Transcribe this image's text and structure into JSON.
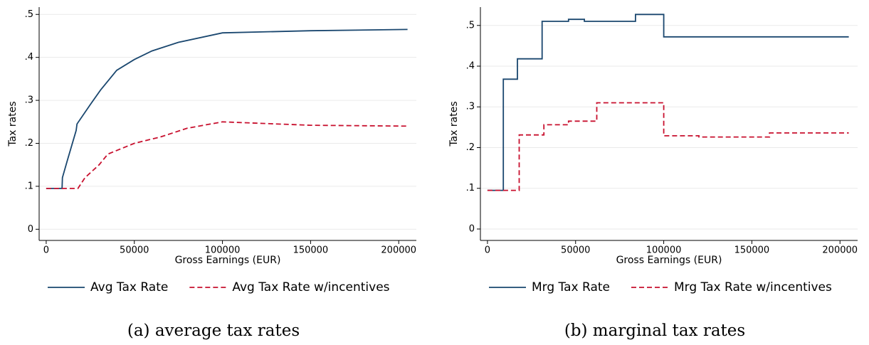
{
  "chart_data": [
    {
      "type": "line",
      "caption": "(a) average tax rates",
      "ylabel": "Tax rates",
      "xlabel": "Gross Earnings (EUR)",
      "xlim": [
        -4000,
        210000
      ],
      "xticks": [
        0,
        50000,
        100000,
        150000,
        200000
      ],
      "ylim": [
        -0.026,
        0.517
      ],
      "yticks": [
        0,
        {
          "value": 0.1,
          "label": ".1"
        },
        {
          "value": 0.2,
          "label": ".2"
        },
        {
          "value": 0.3,
          "label": ".3"
        },
        {
          "value": 0.4,
          "label": ".4"
        },
        {
          "value": 0.5,
          "label": ".5"
        }
      ],
      "grid": true,
      "series": [
        {
          "name": "Avg Tax Rate",
          "color": "#1a476f",
          "style": "solid",
          "x": [
            0,
            9000,
            9200,
            12000,
            17000,
            17500,
            25000,
            31000,
            40000,
            50000,
            60000,
            75000,
            100000,
            150000,
            205000
          ],
          "values": [
            0.095,
            0.095,
            0.12,
            0.16,
            0.23,
            0.245,
            0.29,
            0.325,
            0.37,
            0.395,
            0.415,
            0.435,
            0.457,
            0.462,
            0.465
          ]
        },
        {
          "name": "Avg Tax Rate w/incentives",
          "color": "#c8102e",
          "style": "dashed",
          "x": [
            0,
            18000,
            22000,
            30000,
            35000,
            50000,
            65000,
            80000,
            100000,
            150000,
            205000
          ],
          "values": [
            0.095,
            0.095,
            0.12,
            0.15,
            0.175,
            0.2,
            0.215,
            0.235,
            0.25,
            0.242,
            0.24
          ]
        }
      ]
    },
    {
      "type": "line",
      "caption": "(b) marginal tax rates",
      "ylabel": "Tax rates",
      "xlabel": "Gross Earnings (EUR)",
      "xlim": [
        -4000,
        210000
      ],
      "xticks": [
        0,
        50000,
        100000,
        150000,
        200000
      ],
      "ylim": [
        -0.028,
        0.545
      ],
      "yticks": [
        0,
        {
          "value": 0.1,
          "label": ".1"
        },
        {
          "value": 0.2,
          "label": ".2"
        },
        {
          "value": 0.3,
          "label": ".3"
        },
        {
          "value": 0.4,
          "label": ".4"
        },
        {
          "value": 0.5,
          "label": ".5"
        }
      ],
      "grid": true,
      "series": [
        {
          "name": "Mrg Tax Rate",
          "color": "#1a476f",
          "style": "solid",
          "x": [
            0,
            9000,
            9000,
            17000,
            17000,
            31000,
            31000,
            46000,
            46000,
            55000,
            55000,
            84000,
            84000,
            100000,
            100000,
            205000
          ],
          "values": [
            0.095,
            0.095,
            0.368,
            0.368,
            0.418,
            0.418,
            0.51,
            0.51,
            0.515,
            0.515,
            0.51,
            0.51,
            0.527,
            0.527,
            0.472,
            0.472
          ]
        },
        {
          "name": "Mrg Tax Rate w/incentives",
          "color": "#c8102e",
          "style": "dashed",
          "x": [
            0,
            18000,
            18000,
            32000,
            32000,
            46000,
            46000,
            62000,
            62000,
            100000,
            100000,
            120000,
            120000,
            160000,
            160000,
            205000
          ],
          "values": [
            0.095,
            0.095,
            0.231,
            0.231,
            0.256,
            0.256,
            0.265,
            0.265,
            0.31,
            0.31,
            0.229,
            0.229,
            0.226,
            0.226,
            0.236,
            0.236
          ]
        }
      ]
    }
  ]
}
